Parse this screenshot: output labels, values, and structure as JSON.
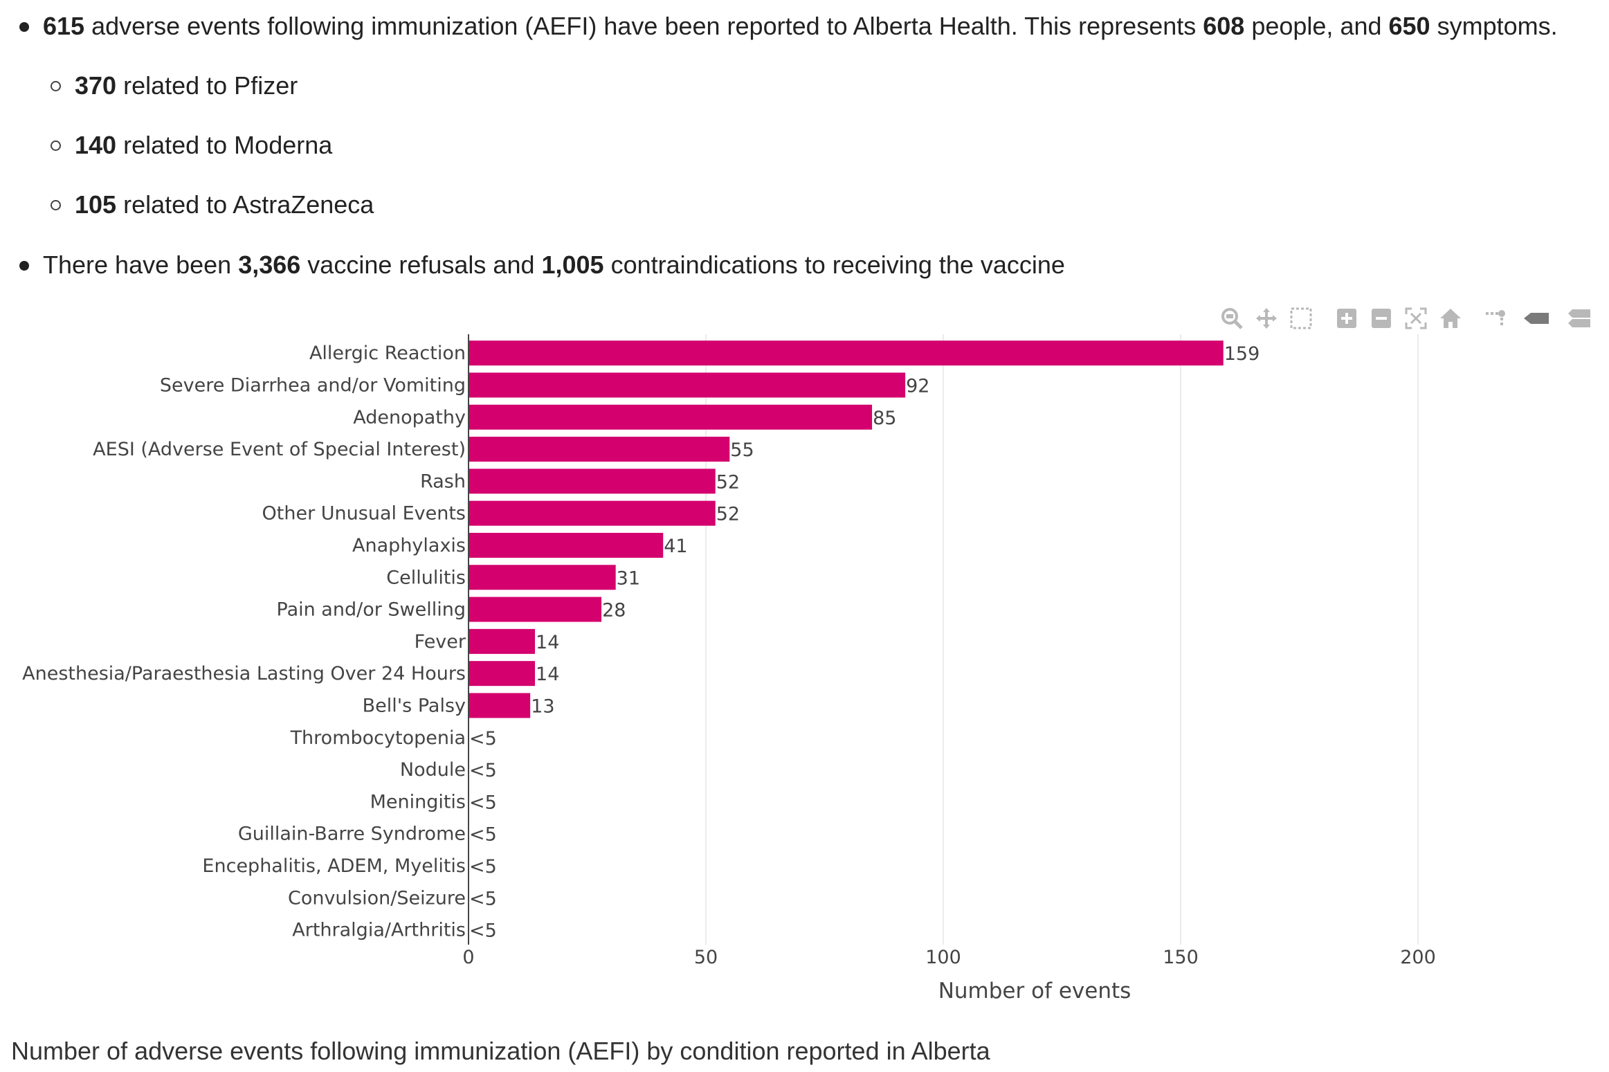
{
  "summary": {
    "line1": {
      "n1": "615",
      "t1": " adverse events following immunization (AEFI) have been reported to Alberta Health. This represents ",
      "n2": "608",
      "t2": " people, and ",
      "n3": "650",
      "t3": " symptoms."
    },
    "sub": [
      {
        "n": "370",
        "t": " related to Pfizer"
      },
      {
        "n": "140",
        "t": " related to Moderna"
      },
      {
        "n": "105",
        "t": " related to AstraZeneca"
      }
    ],
    "line2": {
      "t1": "There have been ",
      "n1": "3,366",
      "t2": " vaccine refusals and ",
      "n2": "1,005",
      "t3": " contraindications to receiving the vaccine"
    }
  },
  "modebar": {
    "icons": [
      "zoom-icon",
      "pan-icon",
      "box-select-icon",
      "zoom-in-icon",
      "zoom-out-icon",
      "autoscale-icon",
      "reset-axes-icon",
      "spike-lines-icon",
      "hover-closest-icon",
      "hover-compare-icon"
    ]
  },
  "caption": "Number of adverse events following immunization (AEFI) by condition reported in Alberta",
  "chart_data": {
    "type": "bar",
    "orientation": "horizontal",
    "categories": [
      "Allergic Reaction",
      "Severe Diarrhea and/or Vomiting",
      "Adenopathy",
      "AESI (Adverse Event of Special Interest)",
      "Rash",
      "Other Unusual Events",
      "Anaphylaxis",
      "Cellulitis",
      "Pain and/or Swelling",
      "Fever",
      "Anesthesia/Paraesthesia Lasting Over 24 Hours",
      "Bell's Palsy",
      "Thrombocytopenia",
      "Nodule",
      "Meningitis",
      "Guillain-Barre Syndrome",
      "Encephalitis, ADEM, Myelitis",
      "Convulsion/Seizure",
      "Arthralgia/Arthritis"
    ],
    "values": [
      159,
      92,
      85,
      55,
      52,
      52,
      41,
      31,
      28,
      14,
      14,
      13,
      0,
      0,
      0,
      0,
      0,
      0,
      0
    ],
    "labels": [
      "159",
      "92",
      "85",
      "55",
      "52",
      "52",
      "41",
      "31",
      "28",
      "14",
      "14",
      "13",
      "<5",
      "<5",
      "<5",
      "<5",
      "<5",
      "<5",
      "<5"
    ],
    "xlabel": "Number of events",
    "xlim": [
      0,
      230
    ],
    "xticks": [
      0,
      50,
      100,
      150,
      200
    ],
    "color": "#d4006e",
    "grid": true
  }
}
